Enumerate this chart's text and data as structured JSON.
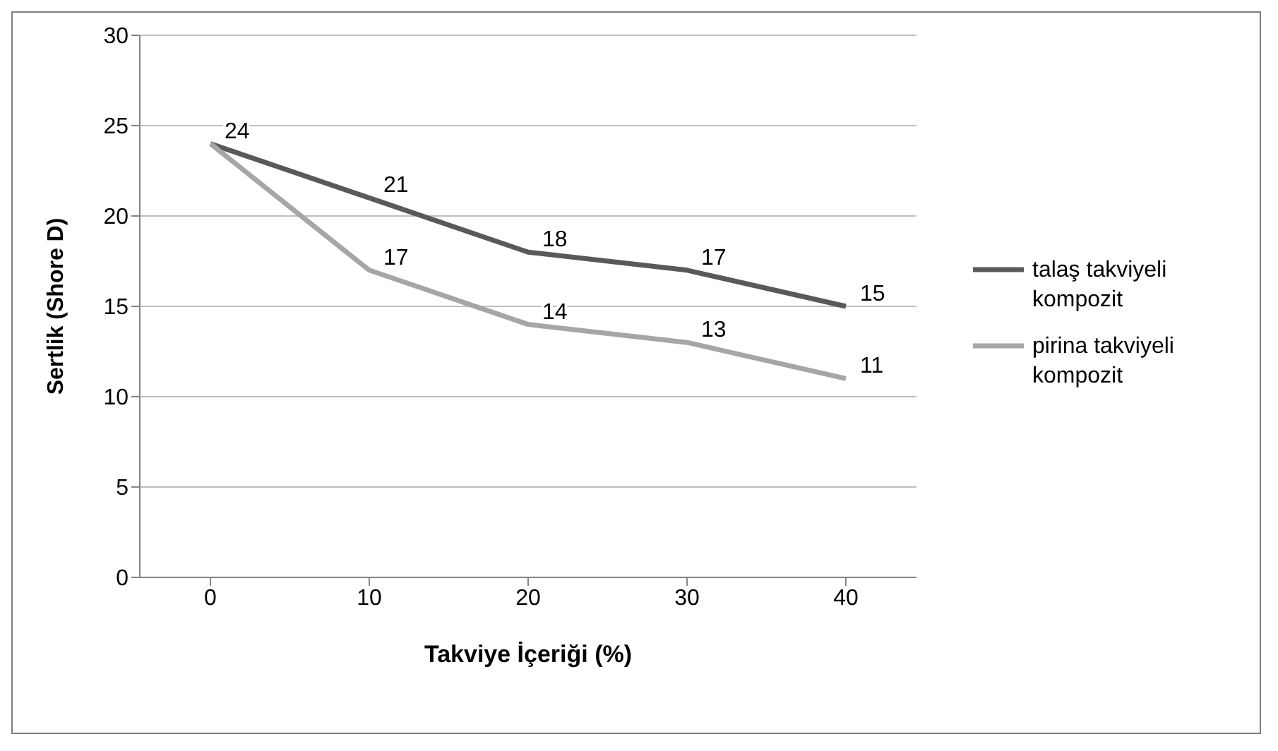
{
  "chart_data": {
    "type": "line",
    "xlabel": "Takviye İçeriği (%)",
    "ylabel": "Sertlik (Shore D)",
    "categories": [
      "0",
      "10",
      "20",
      "30",
      "40"
    ],
    "series": [
      {
        "name": "talaş takviyeli kompozit",
        "color": "#595959",
        "values": [
          24,
          21,
          18,
          17,
          15
        ],
        "value_labels": [
          "24",
          "21",
          "18",
          "17",
          "15"
        ]
      },
      {
        "name": "pirina takviyeli kompozit",
        "color": "#a6a6a6",
        "values": [
          24,
          17,
          14,
          13,
          11
        ],
        "value_labels": [
          null,
          "17",
          "14",
          "13",
          "11"
        ]
      }
    ],
    "ylim": [
      0,
      30
    ],
    "yticks": [
      0,
      5,
      10,
      15,
      20,
      25,
      30
    ],
    "grid": "y",
    "legend": "right",
    "marker": "none",
    "line_style": "solid"
  }
}
